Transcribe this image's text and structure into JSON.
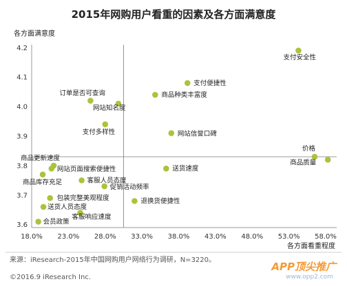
{
  "chart_data": {
    "type": "scatter",
    "title": "2015年网购用户看重的因素及各方面满意度",
    "xlabel": "各方面看重程度",
    "ylabel": "各方面满意度",
    "xlim": [
      18.0,
      59.5
    ],
    "ylim": [
      3.59,
      4.21
    ],
    "x_ticks": [
      "18.0%",
      "23.0%",
      "28.0%",
      "33.0%",
      "38.0%",
      "43.0%",
      "48.0%",
      "53.0%",
      "58.0%"
    ],
    "x_tick_values": [
      18,
      23,
      28,
      33,
      38,
      43,
      48,
      53,
      58
    ],
    "y_ticks": [
      "3.6",
      "3.7",
      "3.8",
      "3.9",
      "4.0",
      "4.1",
      "4.2"
    ],
    "y_tick_values": [
      3.6,
      3.7,
      3.8,
      3.9,
      4.0,
      4.1,
      4.2
    ],
    "x_divider": 30.5,
    "y_divider": 3.83,
    "point_color": "#a9c43c",
    "points": [
      {
        "label": "支付安全性",
        "x": 54.3,
        "y": 4.19
      },
      {
        "label": "支付便捷性",
        "x": 39.2,
        "y": 4.08
      },
      {
        "label": "商品种类丰富度",
        "x": 34.8,
        "y": 4.04
      },
      {
        "label": "订单是否可查询",
        "x": 26.0,
        "y": 4.02
      },
      {
        "label": "网站知名度",
        "x": 29.8,
        "y": 4.01
      },
      {
        "label": "支付多样性",
        "x": 28.0,
        "y": 3.94
      },
      {
        "label": "网站信誉口碑",
        "x": 37.0,
        "y": 3.91
      },
      {
        "label": "价格",
        "x": 56.5,
        "y": 3.83
      },
      {
        "label": "商品质量",
        "x": 58.3,
        "y": 3.82
      },
      {
        "label": "商品更新速度",
        "x": 21.0,
        "y": 3.8
      },
      {
        "label": "网站页面搜索便捷性",
        "x": 20.7,
        "y": 3.79
      },
      {
        "label": "送货速度",
        "x": 36.3,
        "y": 3.79
      },
      {
        "label": "商品库存充足",
        "x": 19.5,
        "y": 3.77
      },
      {
        "label": "客服人员态度",
        "x": 24.8,
        "y": 3.75
      },
      {
        "label": "促销活动频率",
        "x": 27.9,
        "y": 3.73
      },
      {
        "label": "包装完整美观程度",
        "x": 20.5,
        "y": 3.69
      },
      {
        "label": "退换货便捷性",
        "x": 32.0,
        "y": 3.68
      },
      {
        "label": "送货人员态度",
        "x": 19.6,
        "y": 3.66
      },
      {
        "label": "客服响应速度",
        "x": 24.6,
        "y": 3.64
      },
      {
        "label": "会员政策",
        "x": 18.9,
        "y": 3.61
      }
    ]
  },
  "footer": {
    "source": "来源：iResearch-2015年中国网购用户网络行为调研，N=3220。",
    "copyright": "©2016.9 iResearch Inc."
  },
  "watermark": {
    "text": "APP顶尖推广",
    "url": "www.opp2.com"
  }
}
